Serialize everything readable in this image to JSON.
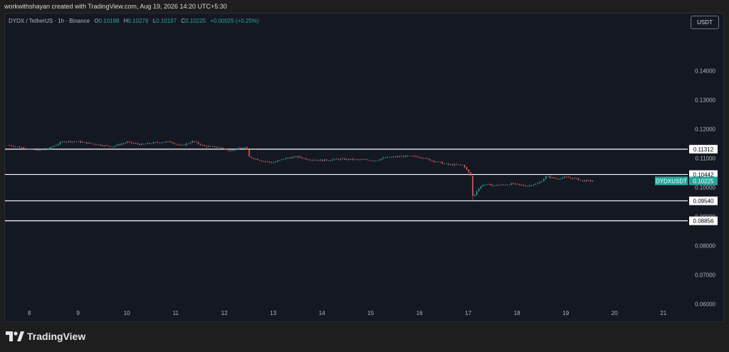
{
  "header": {
    "attribution": "workwithshayan created with TradingView.com, Aug 19, 2026 14:20 UTC+5:30"
  },
  "legend": {
    "symbol": "DYDX / TetherUS · 1h · Binance",
    "o_label": "O",
    "o": "0.10198",
    "h_label": "H",
    "h": "0.10278",
    "l_label": "L",
    "l": "0.10197",
    "c_label": "C",
    "c": "0.10225",
    "change": "+0.00025 (+0.25%)"
  },
  "currency_button": "USDT",
  "footer": {
    "brand": "TradingView"
  },
  "colors": {
    "up": "#26a69a",
    "down": "#ef5350",
    "bg": "#141823",
    "text": "#b2b5be",
    "level_line": "#ffffff"
  },
  "chart_data": {
    "type": "candlestick",
    "symbol": "DYDXUSDT",
    "x_ticks": [
      "8",
      "9",
      "10",
      "11",
      "12",
      "13",
      "14",
      "15",
      "16",
      "17",
      "18",
      "19",
      "20",
      "21"
    ],
    "y_ticks": [
      "0.14000",
      "0.13000",
      "0.12000",
      "0.11000",
      "0.10000",
      "0.09000",
      "0.08000",
      "0.07000",
      "0.06000"
    ],
    "ylim": [
      0.057,
      0.1545
    ],
    "xlim": [
      7.5,
      21.5
    ],
    "levels": [
      "0.11312",
      "0.10442",
      "0.09540",
      "0.08856"
    ],
    "last_price": {
      "label": "DYDXUSDT",
      "value": "0.10225"
    },
    "price_path": [
      [
        7.55,
        0.1145
      ],
      [
        7.8,
        0.1138
      ],
      [
        8.1,
        0.1128
      ],
      [
        8.35,
        0.113
      ],
      [
        8.7,
        0.1158
      ],
      [
        9.0,
        0.1157
      ],
      [
        9.35,
        0.1148
      ],
      [
        9.7,
        0.114
      ],
      [
        10.0,
        0.1155
      ],
      [
        10.3,
        0.1147
      ],
      [
        10.55,
        0.1153
      ],
      [
        10.9,
        0.1157
      ],
      [
        11.1,
        0.1142
      ],
      [
        11.35,
        0.1158
      ],
      [
        11.6,
        0.1141
      ],
      [
        11.9,
        0.1138
      ],
      [
        12.1,
        0.1127
      ],
      [
        12.45,
        0.1138
      ],
      [
        12.5,
        0.1105
      ],
      [
        12.8,
        0.109
      ],
      [
        13.0,
        0.1085
      ],
      [
        13.25,
        0.11
      ],
      [
        13.5,
        0.1105
      ],
      [
        13.7,
        0.1097
      ],
      [
        14.0,
        0.1093
      ],
      [
        14.4,
        0.1097
      ],
      [
        14.8,
        0.1095
      ],
      [
        15.1,
        0.1093
      ],
      [
        15.3,
        0.1102
      ],
      [
        15.7,
        0.1107
      ],
      [
        16.0,
        0.1105
      ],
      [
        16.3,
        0.109
      ],
      [
        16.6,
        0.1078
      ],
      [
        16.9,
        0.1077
      ],
      [
        17.05,
        0.104
      ],
      [
        17.1,
        0.0957
      ],
      [
        17.15,
        0.0985
      ],
      [
        17.3,
        0.101
      ],
      [
        17.6,
        0.1007
      ],
      [
        17.9,
        0.1012
      ],
      [
        18.2,
        0.1005
      ],
      [
        18.45,
        0.1015
      ],
      [
        18.6,
        0.1038
      ],
      [
        18.8,
        0.103
      ],
      [
        19.0,
        0.1035
      ],
      [
        19.2,
        0.103
      ],
      [
        19.35,
        0.1023
      ],
      [
        19.55,
        0.10225
      ]
    ]
  }
}
